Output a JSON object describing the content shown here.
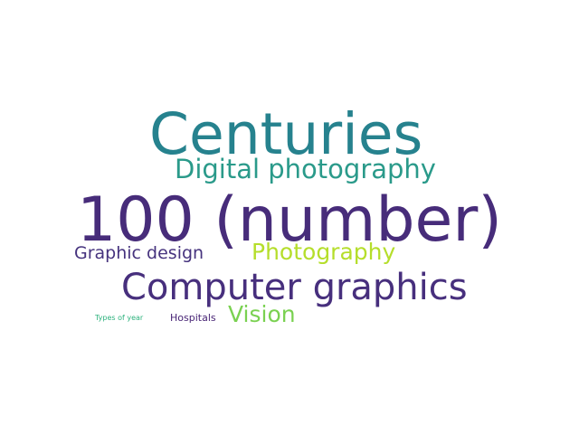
{
  "word_cloud": {
    "words": [
      {
        "text": "Centuries",
        "color": "#26828e"
      },
      {
        "text": "Digital photography",
        "color": "#2a9a8a"
      },
      {
        "text": "100 (number)",
        "color": "#472c7a"
      },
      {
        "text": "Graphic design",
        "color": "#46337e"
      },
      {
        "text": "Photography",
        "color": "#b5de2b"
      },
      {
        "text": "Computer graphics",
        "color": "#472f7d"
      },
      {
        "text": "Types of year",
        "color": "#2db27d"
      },
      {
        "text": "Hospitals",
        "color": "#482475"
      },
      {
        "text": "Vision",
        "color": "#7ad151"
      }
    ]
  }
}
